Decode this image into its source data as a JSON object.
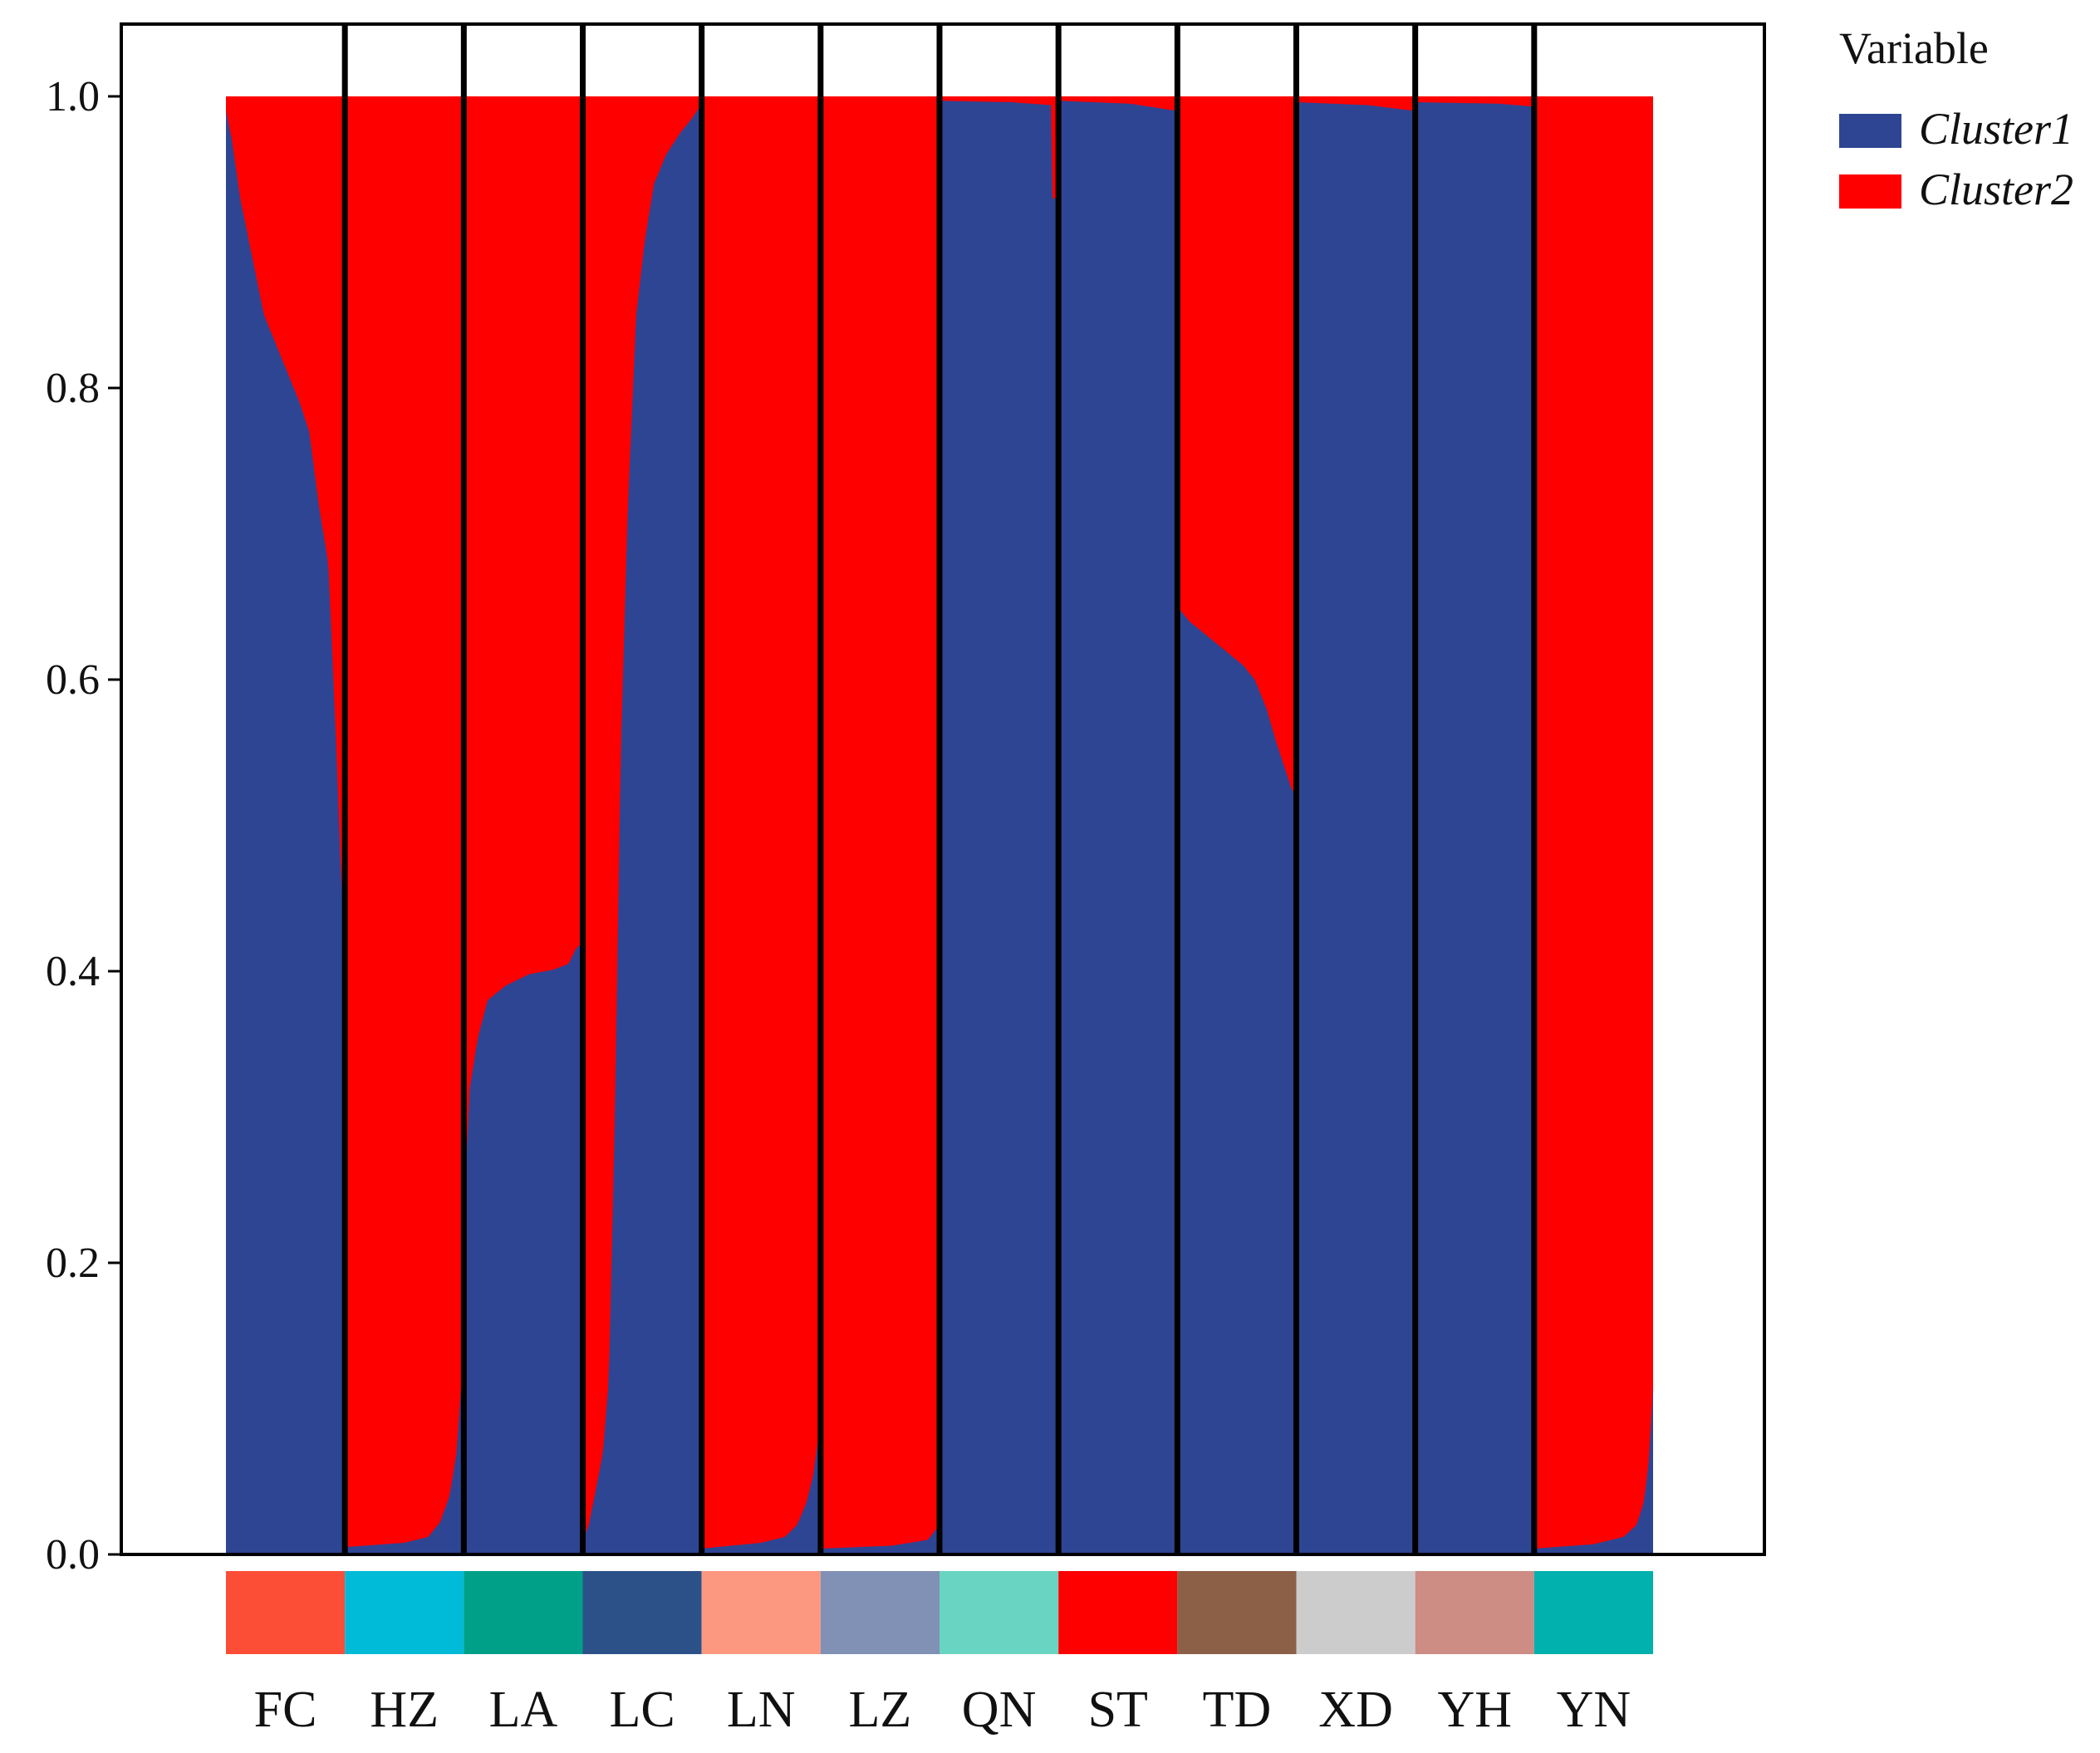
{
  "chart_data": {
    "type": "bar",
    "subtype": "stacked-admixture",
    "title": "",
    "xlabel": "",
    "ylabel": "",
    "ylim": [
      0,
      1.05
    ],
    "yticks": [
      0.0,
      0.2,
      0.4,
      0.6,
      0.8,
      1.0
    ],
    "ytick_labels": [
      "0.0",
      "0.2",
      "0.4",
      "0.6",
      "0.8",
      "1.0"
    ],
    "grid": false,
    "legend": {
      "title": "Variable",
      "position": "top-right",
      "entries": [
        {
          "name": "Cluster1",
          "color": "#2e4593"
        },
        {
          "name": "Cluster2",
          "color": "#ff0000"
        }
      ]
    },
    "series": [
      {
        "name": "Cluster1",
        "color": "#2e4593"
      },
      {
        "name": "Cluster2",
        "color": "#ff0000"
      }
    ],
    "populations": [
      {
        "name": "FC",
        "color": "#fc4e37",
        "cluster1_profile": [
          [
            0,
            0.99
          ],
          [
            0.05,
            0.97
          ],
          [
            0.12,
            0.93
          ],
          [
            0.22,
            0.89
          ],
          [
            0.32,
            0.85
          ],
          [
            0.42,
            0.83
          ],
          [
            0.52,
            0.81
          ],
          [
            0.62,
            0.79
          ],
          [
            0.7,
            0.77
          ],
          [
            0.78,
            0.72
          ],
          [
            0.86,
            0.68
          ],
          [
            0.93,
            0.55
          ],
          [
            0.97,
            0.46
          ],
          [
            1,
            0.44
          ]
        ]
      },
      {
        "name": "HZ",
        "color": "#00bbd8",
        "cluster1_profile": [
          [
            0,
            0.005
          ],
          [
            0.5,
            0.008
          ],
          [
            0.7,
            0.012
          ],
          [
            0.8,
            0.022
          ],
          [
            0.88,
            0.04
          ],
          [
            0.94,
            0.07
          ],
          [
            0.98,
            0.12
          ],
          [
            1,
            0.13
          ]
        ]
      },
      {
        "name": "LA",
        "color": "#00a088",
        "cluster1_profile": [
          [
            0,
            0.2
          ],
          [
            0.02,
            0.27
          ],
          [
            0.05,
            0.32
          ],
          [
            0.12,
            0.355
          ],
          [
            0.2,
            0.38
          ],
          [
            0.35,
            0.39
          ],
          [
            0.55,
            0.398
          ],
          [
            0.75,
            0.401
          ],
          [
            0.88,
            0.405
          ],
          [
            0.94,
            0.415
          ],
          [
            1,
            0.42
          ]
        ]
      },
      {
        "name": "LC",
        "color": "#2c5189",
        "cluster1_profile": [
          [
            0,
            0.01
          ],
          [
            0.05,
            0.02
          ],
          [
            0.1,
            0.04
          ],
          [
            0.17,
            0.07
          ],
          [
            0.22,
            0.12
          ],
          [
            0.27,
            0.3
          ],
          [
            0.32,
            0.55
          ],
          [
            0.38,
            0.72
          ],
          [
            0.45,
            0.85
          ],
          [
            0.52,
            0.9
          ],
          [
            0.6,
            0.94
          ],
          [
            0.7,
            0.96
          ],
          [
            0.82,
            0.975
          ],
          [
            0.92,
            0.985
          ],
          [
            1,
            0.995
          ]
        ]
      },
      {
        "name": "LN",
        "color": "#fc9880",
        "cluster1_profile": [
          [
            0,
            0.004
          ],
          [
            0.5,
            0.008
          ],
          [
            0.7,
            0.012
          ],
          [
            0.8,
            0.02
          ],
          [
            0.88,
            0.035
          ],
          [
            0.94,
            0.055
          ],
          [
            0.98,
            0.08
          ],
          [
            1,
            0.09
          ]
        ]
      },
      {
        "name": "LZ",
        "color": "#8190b5",
        "cluster1_profile": [
          [
            0,
            0.004
          ],
          [
            0.6,
            0.006
          ],
          [
            0.9,
            0.01
          ],
          [
            1,
            0.02
          ]
        ]
      },
      {
        "name": "QN",
        "color": "#6ad4c2",
        "cluster1_profile": [
          [
            0,
            0.997
          ],
          [
            0.6,
            0.996
          ],
          [
            0.94,
            0.994
          ],
          [
            0.95,
            0.93
          ],
          [
            1,
            0.93
          ]
        ]
      },
      {
        "name": "ST",
        "color": "#ff0000",
        "cluster1_profile": [
          [
            0,
            0.997
          ],
          [
            0.6,
            0.995
          ],
          [
            1,
            0.99
          ]
        ]
      },
      {
        "name": "TD",
        "color": "#8c6047",
        "cluster1_profile": [
          [
            0,
            0.65
          ],
          [
            0.1,
            0.64
          ],
          [
            0.25,
            0.63
          ],
          [
            0.4,
            0.62
          ],
          [
            0.55,
            0.61
          ],
          [
            0.65,
            0.6
          ],
          [
            0.75,
            0.58
          ],
          [
            0.82,
            0.56
          ],
          [
            0.9,
            0.54
          ],
          [
            0.96,
            0.525
          ],
          [
            1,
            0.52
          ]
        ]
      },
      {
        "name": "XD",
        "color": "#cccccc",
        "cluster1_profile": [
          [
            0,
            0.996
          ],
          [
            0.6,
            0.994
          ],
          [
            1,
            0.99
          ]
        ]
      },
      {
        "name": "YH",
        "color": "#cd8c84",
        "cluster1_profile": [
          [
            0,
            0.996
          ],
          [
            0.7,
            0.995
          ],
          [
            1,
            0.993
          ]
        ]
      },
      {
        "name": "YN",
        "color": "#00b1ae",
        "cluster1_profile": [
          [
            0,
            0.004
          ],
          [
            0.5,
            0.007
          ],
          [
            0.75,
            0.012
          ],
          [
            0.86,
            0.02
          ],
          [
            0.92,
            0.035
          ],
          [
            0.96,
            0.06
          ],
          [
            0.99,
            0.1
          ],
          [
            1,
            0.115
          ]
        ]
      }
    ]
  }
}
